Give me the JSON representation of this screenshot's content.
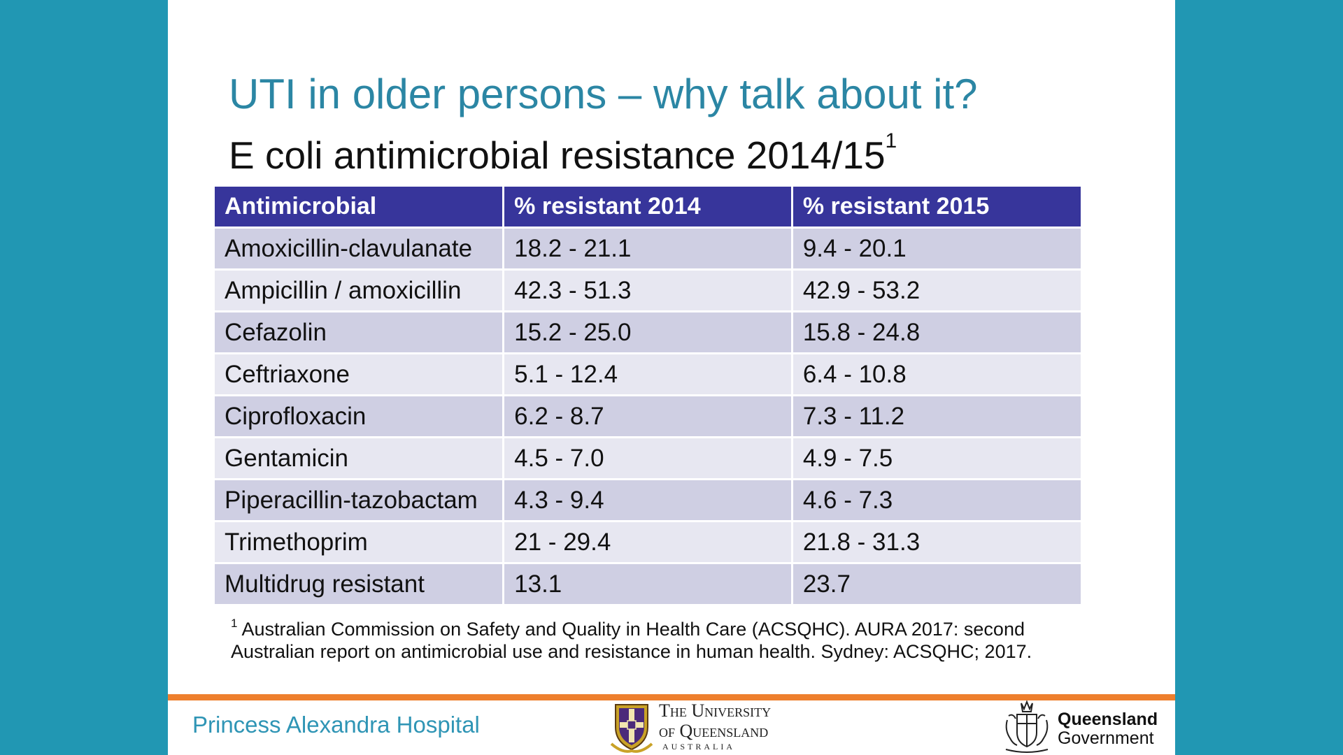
{
  "slide": {
    "title": "UTI in older persons – why talk about it?",
    "subtitle": "E coli antimicrobial resistance 2014/15",
    "subtitle_sup": "1"
  },
  "table": {
    "headers": [
      "Antimicrobial",
      "% resistant 2014",
      "% resistant 2015"
    ],
    "rows": [
      [
        "Amoxicillin-clavulanate",
        "18.2 - 21.1",
        "9.4 - 20.1"
      ],
      [
        "Ampicillin / amoxicillin",
        "42.3 - 51.3",
        "42.9 - 53.2"
      ],
      [
        "Cefazolin",
        "15.2 - 25.0",
        "15.8 - 24.8"
      ],
      [
        "Ceftriaxone",
        "5.1 - 12.4",
        "6.4 - 10.8"
      ],
      [
        "Ciprofloxacin",
        "6.2 - 8.7",
        "7.3 - 11.2"
      ],
      [
        "Gentamicin",
        "4.5 - 7.0",
        "4.9 - 7.5"
      ],
      [
        "Piperacillin-tazobactam",
        "4.3 - 9.4",
        "4.6 - 7.3"
      ],
      [
        "Trimethoprim",
        "21 - 29.4",
        "21.8 - 31.3"
      ],
      [
        "Multidrug resistant",
        "13.1",
        "23.7"
      ]
    ]
  },
  "footnote": {
    "marker": "1",
    "text": "Australian Commission on Safety and Quality in Health Care (ACSQHC). AURA 2017: second Australian report on antimicrobial use and resistance in human health. Sydney: ACSQHC; 2017."
  },
  "footer": {
    "hospital": "Princess Alexandra Hospital",
    "uq_line1": "The University",
    "uq_line2": "of Queensland",
    "uq_line3": "AUSTRALIA",
    "qld_line1": "Queensland",
    "qld_line2": "Government"
  },
  "colors": {
    "background": "#2197b3",
    "title": "#2b86a4",
    "table_header": "#37359b",
    "row_odd": "#cfcfe3",
    "row_even": "#e7e7f1",
    "footer_bar": "#ee7f2d",
    "hospital_text": "#2f95b5"
  }
}
